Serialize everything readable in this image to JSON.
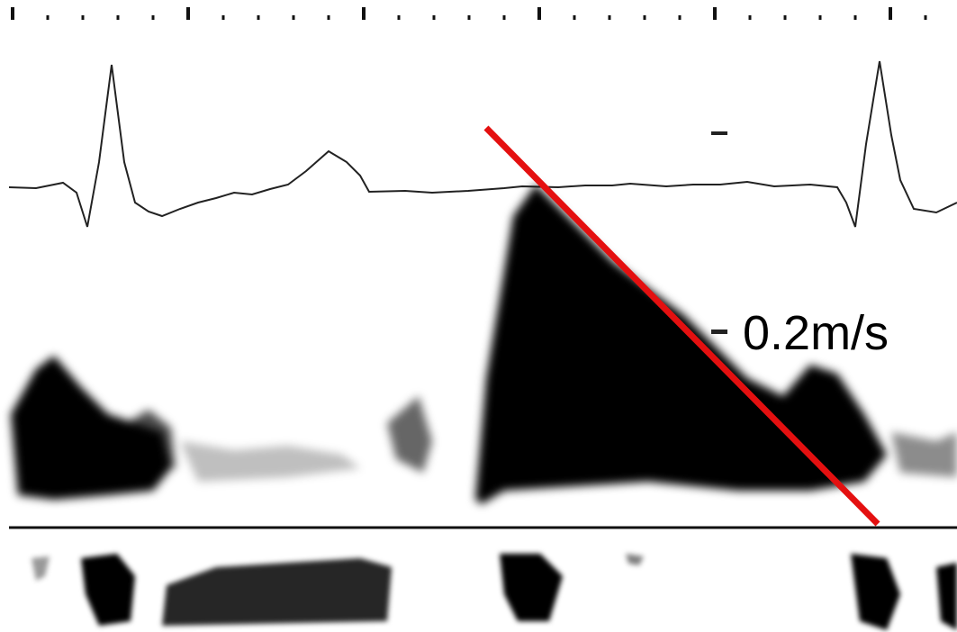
{
  "labels": {
    "velocity": "0.2m/s"
  }
}
